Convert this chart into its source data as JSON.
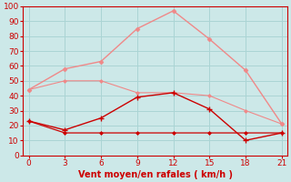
{
  "x": [
    0,
    3,
    6,
    9,
    12,
    15,
    18,
    21
  ],
  "line_rafales_peak": [
    44,
    58,
    63,
    85,
    97,
    78,
    57,
    21
  ],
  "line_rafales_diag": [
    44,
    50,
    50,
    42,
    42,
    40,
    30,
    21
  ],
  "line_wind_peak": [
    23,
    17,
    25,
    39,
    42,
    31,
    10,
    15
  ],
  "line_wind_flat": [
    23,
    15,
    15,
    15,
    15,
    15,
    15,
    15
  ],
  "color_light": "#f08888",
  "color_dark": "#cc0000",
  "bg_color": "#cce8e8",
  "grid_color": "#aad4d4",
  "xlabel": "Vent moyen/en rafales ( km/h )",
  "xlabel_color": "#cc0000",
  "yticks": [
    0,
    10,
    20,
    30,
    40,
    50,
    60,
    70,
    80,
    90,
    100
  ],
  "xticks": [
    0,
    3,
    6,
    9,
    12,
    15,
    18,
    21
  ],
  "xlim": [
    -0.5,
    21.5
  ],
  "ylim": [
    0,
    100
  ],
  "tick_color": "#cc0000",
  "axis_color": "#cc0000",
  "figsize": [
    3.2,
    2.0
  ],
  "dpi": 100
}
